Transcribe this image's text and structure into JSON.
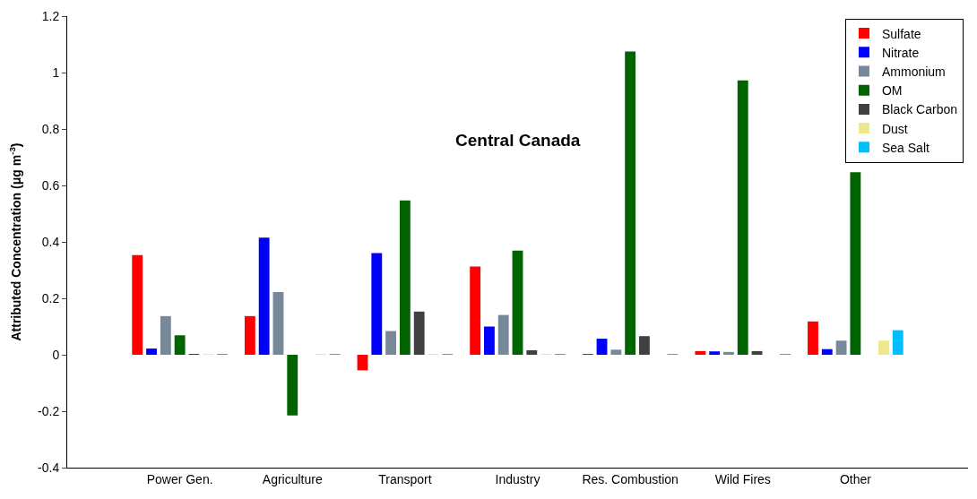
{
  "chart_data": {
    "type": "bar",
    "ylabel": "Attributed Concentration (μg m$^{-3}$)",
    "annotations": [
      "Central Canada"
    ],
    "categories": [
      "Power Gen.",
      "Agriculture",
      "Transport",
      "Industry",
      "Res. Combustion",
      "Wild Fires",
      "Other"
    ],
    "series": [
      {
        "name": "Sulfate",
        "color": "#ff0000",
        "values": [
          0.353,
          0.137,
          -0.055,
          0.313,
          0.002,
          0.013,
          0.118
        ]
      },
      {
        "name": "Nitrate",
        "color": "#0000ff",
        "values": [
          0.022,
          0.415,
          0.36,
          0.1,
          0.057,
          0.012,
          0.02
        ]
      },
      {
        "name": "Ammonium",
        "color": "#778899",
        "values": [
          0.137,
          0.222,
          0.084,
          0.141,
          0.018,
          0.01,
          0.05
        ]
      },
      {
        "name": "OM",
        "color": "#006400",
        "values": [
          0.069,
          -0.215,
          0.547,
          0.369,
          1.075,
          0.972,
          0.647
        ]
      },
      {
        "name": "Black Carbon",
        "color": "#404040",
        "values": [
          0.003,
          0,
          0.153,
          0.016,
          0.066,
          0.013,
          0
        ]
      },
      {
        "name": "Dust",
        "color": "#f0e68c",
        "values": [
          0.001,
          0.002,
          0.002,
          0.001,
          0,
          0,
          0.05
        ]
      },
      {
        "name": "Sea Salt",
        "color": "#00bfff",
        "values": [
          0.002,
          0.002,
          0.002,
          0.002,
          0.002,
          0.002,
          0.087
        ]
      }
    ],
    "ylim": [
      -0.4,
      1.2
    ],
    "yticks": [
      -0.4,
      -0.2,
      0,
      0.2,
      0.4,
      0.6,
      0.8,
      1,
      1.2
    ],
    "legend": "top right"
  }
}
